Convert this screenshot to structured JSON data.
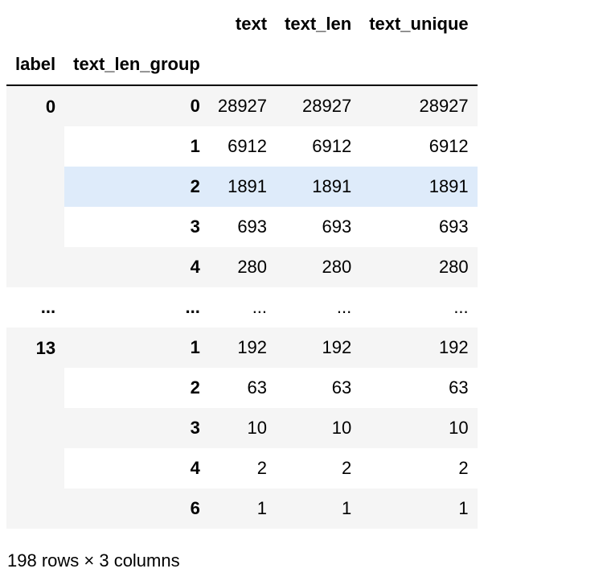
{
  "table": {
    "index_names": [
      "label",
      "text_len_group"
    ],
    "columns": [
      "text",
      "text_len",
      "text_unique"
    ],
    "groups": [
      {
        "label": "0",
        "rows": [
          {
            "group": "0",
            "values": [
              "28927",
              "28927",
              "28927"
            ]
          },
          {
            "group": "1",
            "values": [
              "6912",
              "6912",
              "6912"
            ]
          },
          {
            "group": "2",
            "values": [
              "1891",
              "1891",
              "1891"
            ]
          },
          {
            "group": "3",
            "values": [
              "693",
              "693",
              "693"
            ]
          },
          {
            "group": "4",
            "values": [
              "280",
              "280",
              "280"
            ]
          }
        ]
      },
      {
        "label": "...",
        "rows": [
          {
            "group": "...",
            "values": [
              "...",
              "...",
              "..."
            ]
          }
        ]
      },
      {
        "label": "13",
        "rows": [
          {
            "group": "1",
            "values": [
              "192",
              "192",
              "192"
            ]
          },
          {
            "group": "2",
            "values": [
              "63",
              "63",
              "63"
            ]
          },
          {
            "group": "3",
            "values": [
              "10",
              "10",
              "10"
            ]
          },
          {
            "group": "4",
            "values": [
              "2",
              "2",
              "2"
            ]
          },
          {
            "group": "6",
            "values": [
              "1",
              "1",
              "1"
            ]
          }
        ]
      }
    ],
    "highlight_color": "#deebfa",
    "stripe_color": "#f5f5f5"
  },
  "footer": {
    "shape": "198 rows × 3 columns"
  }
}
